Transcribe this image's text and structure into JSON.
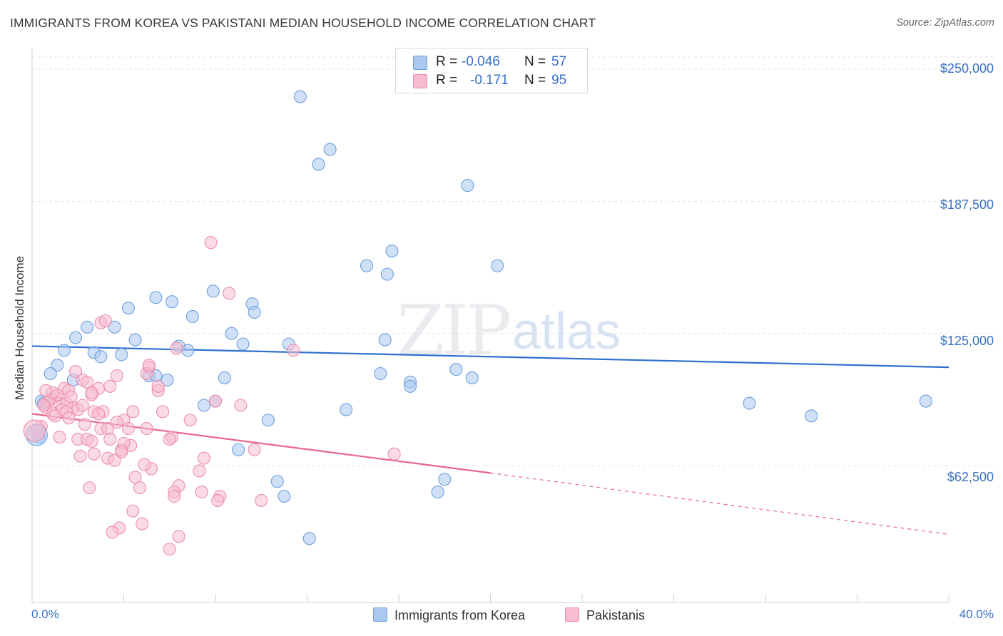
{
  "title": "IMMIGRANTS FROM KOREA VS PAKISTANI MEDIAN HOUSEHOLD INCOME CORRELATION CHART",
  "source": "Source: ZipAtlas.com",
  "watermark": {
    "zip": "ZIP",
    "atlas": "atlas"
  },
  "legend": {
    "r_label": "R =",
    "n_label": "N =",
    "korea": {
      "r": "-0.046",
      "n": "57"
    },
    "pakistani": {
      "r": "-0.171",
      "n": "95"
    }
  },
  "colors": {
    "korea_fill": "#aac8f0",
    "korea_stroke": "#6f9fdc",
    "korea_line": "#2e6fcd",
    "pak_fill": "#f6bccf",
    "pak_stroke": "#ec8eb0",
    "pak_line": "#e8658f",
    "axis_text": "#3a70c6",
    "grid": "#e3e3e3"
  },
  "chart_data": {
    "type": "scatter",
    "title": "IMMIGRANTS FROM KOREA VS PAKISTANI MEDIAN HOUSEHOLD INCOME CORRELATION CHART",
    "xlabel": "",
    "ylabel": "Median Household Income",
    "xlim": [
      0,
      40
    ],
    "ylim": [
      0,
      260000
    ],
    "x_tick_labels": [
      "0.0%",
      "40.0%"
    ],
    "y_ticks": [
      62500,
      125000,
      187500,
      250000
    ],
    "y_tick_labels": [
      "$62,500",
      "$125,000",
      "$187,500",
      "$250,000"
    ],
    "grid": true,
    "series": [
      {
        "name": "Immigrants from Korea",
        "points": [
          [
            11.7,
            237000
          ],
          [
            13.0,
            212000
          ],
          [
            12.5,
            205000
          ],
          [
            19.0,
            195000
          ],
          [
            15.7,
            164000
          ],
          [
            14.6,
            157000
          ],
          [
            15.5,
            153000
          ],
          [
            20.3,
            157000
          ],
          [
            7.9,
            145000
          ],
          [
            5.4,
            142000
          ],
          [
            6.1,
            140000
          ],
          [
            9.6,
            139000
          ],
          [
            4.2,
            137000
          ],
          [
            9.7,
            135000
          ],
          [
            7.0,
            133000
          ],
          [
            2.4,
            128000
          ],
          [
            3.6,
            128000
          ],
          [
            8.7,
            125000
          ],
          [
            1.9,
            123000
          ],
          [
            4.5,
            122000
          ],
          [
            9.2,
            120000
          ],
          [
            11.2,
            120000
          ],
          [
            15.4,
            122000
          ],
          [
            6.4,
            119000
          ],
          [
            6.8,
            117000
          ],
          [
            1.4,
            117000
          ],
          [
            2.7,
            116000
          ],
          [
            3.0,
            114000
          ],
          [
            3.9,
            115000
          ],
          [
            1.1,
            110000
          ],
          [
            0.8,
            106000
          ],
          [
            5.1,
            105000
          ],
          [
            5.4,
            105000
          ],
          [
            8.4,
            104000
          ],
          [
            5.9,
            103000
          ],
          [
            1.8,
            103000
          ],
          [
            15.2,
            106000
          ],
          [
            16.5,
            102000
          ],
          [
            16.5,
            100000
          ],
          [
            18.5,
            108000
          ],
          [
            19.2,
            104000
          ],
          [
            8.0,
            93000
          ],
          [
            7.5,
            91000
          ],
          [
            13.7,
            89000
          ],
          [
            31.3,
            92000
          ],
          [
            34.0,
            86000
          ],
          [
            39.0,
            93000
          ],
          [
            10.3,
            84000
          ],
          [
            9.0,
            70000
          ],
          [
            10.7,
            55000
          ],
          [
            11.0,
            48000
          ],
          [
            18.0,
            56000
          ],
          [
            17.7,
            50000
          ],
          [
            12.1,
            28000
          ],
          [
            0.3,
            76000
          ],
          [
            0.4,
            93000
          ],
          [
            0.5,
            92000
          ]
        ]
      },
      {
        "name": "Pakistanis",
        "points": [
          [
            7.8,
            168000
          ],
          [
            8.6,
            144000
          ],
          [
            3.0,
            130000
          ],
          [
            11.4,
            117000
          ],
          [
            6.3,
            118000
          ],
          [
            5.1,
            109000
          ],
          [
            5.0,
            106000
          ],
          [
            3.7,
            105000
          ],
          [
            1.9,
            107000
          ],
          [
            2.2,
            103000
          ],
          [
            1.4,
            99000
          ],
          [
            1.6,
            98000
          ],
          [
            2.9,
            99000
          ],
          [
            5.5,
            98000
          ],
          [
            2.6,
            96000
          ],
          [
            1.0,
            95000
          ],
          [
            0.8,
            94000
          ],
          [
            0.7,
            93000
          ],
          [
            1.2,
            92000
          ],
          [
            1.5,
            92000
          ],
          [
            0.6,
            90000
          ],
          [
            1.8,
            90000
          ],
          [
            1.3,
            89000
          ],
          [
            2.0,
            89000
          ],
          [
            1.5,
            88000
          ],
          [
            0.9,
            87000
          ],
          [
            2.7,
            88000
          ],
          [
            3.1,
            88000
          ],
          [
            4.4,
            88000
          ],
          [
            5.7,
            88000
          ],
          [
            1.6,
            85000
          ],
          [
            4.0,
            84000
          ],
          [
            6.9,
            84000
          ],
          [
            2.3,
            82000
          ],
          [
            3.0,
            80000
          ],
          [
            3.3,
            80000
          ],
          [
            4.2,
            80000
          ],
          [
            5.0,
            80000
          ],
          [
            0.3,
            79000
          ],
          [
            2.0,
            75000
          ],
          [
            2.4,
            75000
          ],
          [
            3.4,
            75000
          ],
          [
            6.1,
            76000
          ],
          [
            4.3,
            72000
          ],
          [
            2.7,
            68000
          ],
          [
            3.3,
            66000
          ],
          [
            3.6,
            65000
          ],
          [
            3.9,
            70000
          ],
          [
            7.5,
            66000
          ],
          [
            9.7,
            70000
          ],
          [
            15.8,
            68000
          ],
          [
            5.2,
            61000
          ],
          [
            4.5,
            57000
          ],
          [
            6.4,
            53000
          ],
          [
            2.5,
            52000
          ],
          [
            4.7,
            52000
          ],
          [
            6.2,
            50000
          ],
          [
            7.4,
            50000
          ],
          [
            8.2,
            48000
          ],
          [
            8.1,
            46000
          ],
          [
            10.0,
            46000
          ],
          [
            4.4,
            41000
          ],
          [
            4.8,
            35000
          ],
          [
            3.8,
            33000
          ],
          [
            3.5,
            31000
          ],
          [
            6.4,
            29000
          ],
          [
            6.0,
            23000
          ],
          [
            9.1,
            91000
          ],
          [
            0.4,
            81000
          ],
          [
            0.2,
            79000
          ],
          [
            2.6,
            97000
          ],
          [
            3.4,
            100000
          ],
          [
            1.1,
            96000
          ],
          [
            0.5,
            91000
          ],
          [
            2.9,
            87000
          ],
          [
            4.0,
            73000
          ],
          [
            1.2,
            76000
          ],
          [
            3.7,
            83000
          ],
          [
            2.1,
            67000
          ],
          [
            6.0,
            75000
          ],
          [
            7.3,
            60000
          ],
          [
            5.5,
            100000
          ],
          [
            0.9,
            97000
          ],
          [
            1.7,
            95000
          ],
          [
            2.4,
            102000
          ],
          [
            5.1,
            110000
          ],
          [
            3.2,
            131000
          ],
          [
            8.0,
            93000
          ],
          [
            1.0,
            86000
          ],
          [
            0.6,
            98000
          ],
          [
            2.2,
            91000
          ],
          [
            4.9,
            63000
          ],
          [
            3.9,
            69000
          ],
          [
            6.2,
            48000
          ],
          [
            2.6,
            74000
          ]
        ]
      }
    ],
    "trendlines": [
      {
        "series": "Immigrants from Korea",
        "x": [
          0,
          40
        ],
        "y": [
          119000,
          109000
        ],
        "style": "solid"
      },
      {
        "series": "Pakistanis",
        "solid_x": [
          0,
          20
        ],
        "solid_y": [
          87000,
          59000
        ],
        "dashed_x": [
          20,
          40
        ],
        "dashed_y": [
          59000,
          30000
        ]
      }
    ],
    "large_points": [
      {
        "series": "Immigrants from Korea",
        "x": 0.2,
        "y": 77000
      },
      {
        "series": "Pakistanis",
        "x": 0.1,
        "y": 79000
      }
    ]
  }
}
